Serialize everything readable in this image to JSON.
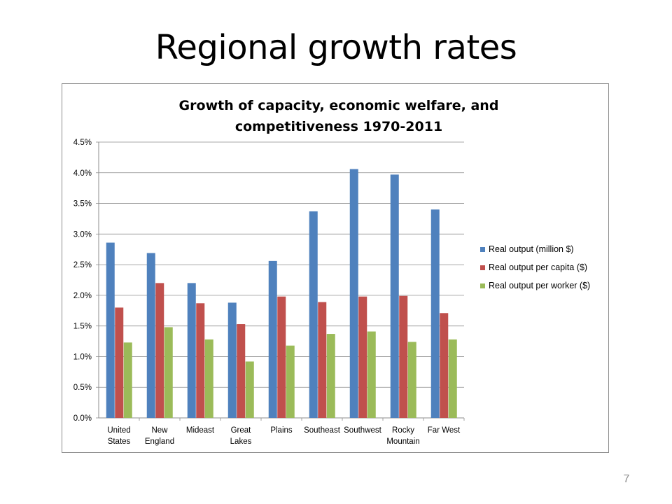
{
  "slide": {
    "title": "Regional growth rates",
    "page_number": "7"
  },
  "chart_data": {
    "type": "bar",
    "title_lines": [
      "Growth of capacity, economic welfare, and",
      "competitiveness 1970-2011"
    ],
    "categories": [
      [
        "United",
        "States"
      ],
      [
        "New",
        "England"
      ],
      [
        "Mideast"
      ],
      [
        "Great",
        "Lakes"
      ],
      [
        "Plains"
      ],
      [
        "Southeast"
      ],
      [
        "Southwest"
      ],
      [
        "Rocky",
        "Mountain"
      ],
      [
        "Far West"
      ]
    ],
    "ylim": [
      0,
      4.5
    ],
    "y_ticks": [
      0,
      0.5,
      1.0,
      1.5,
      2.0,
      2.5,
      3.0,
      3.5,
      4.0,
      4.5
    ],
    "y_tick_labels": [
      "0.0%",
      "0.5%",
      "1.0%",
      "1.5%",
      "2.0%",
      "2.5%",
      "3.0%",
      "3.5%",
      "4.0%",
      "4.5%"
    ],
    "grid": true,
    "legend_position": "right",
    "series": [
      {
        "name": "Real output (million $)",
        "color": "#4f81bd",
        "values": [
          2.86,
          2.69,
          2.2,
          1.88,
          2.56,
          3.37,
          4.06,
          3.97,
          3.4
        ]
      },
      {
        "name": "Real output per capita ($)",
        "color": "#c0504d",
        "values": [
          1.8,
          2.2,
          1.87,
          1.53,
          1.98,
          1.89,
          1.98,
          1.99,
          1.71
        ]
      },
      {
        "name": "Real output per worker ($)",
        "color": "#9bbb59",
        "values": [
          1.23,
          1.48,
          1.28,
          0.92,
          1.18,
          1.37,
          1.41,
          1.24,
          1.28
        ]
      }
    ]
  }
}
